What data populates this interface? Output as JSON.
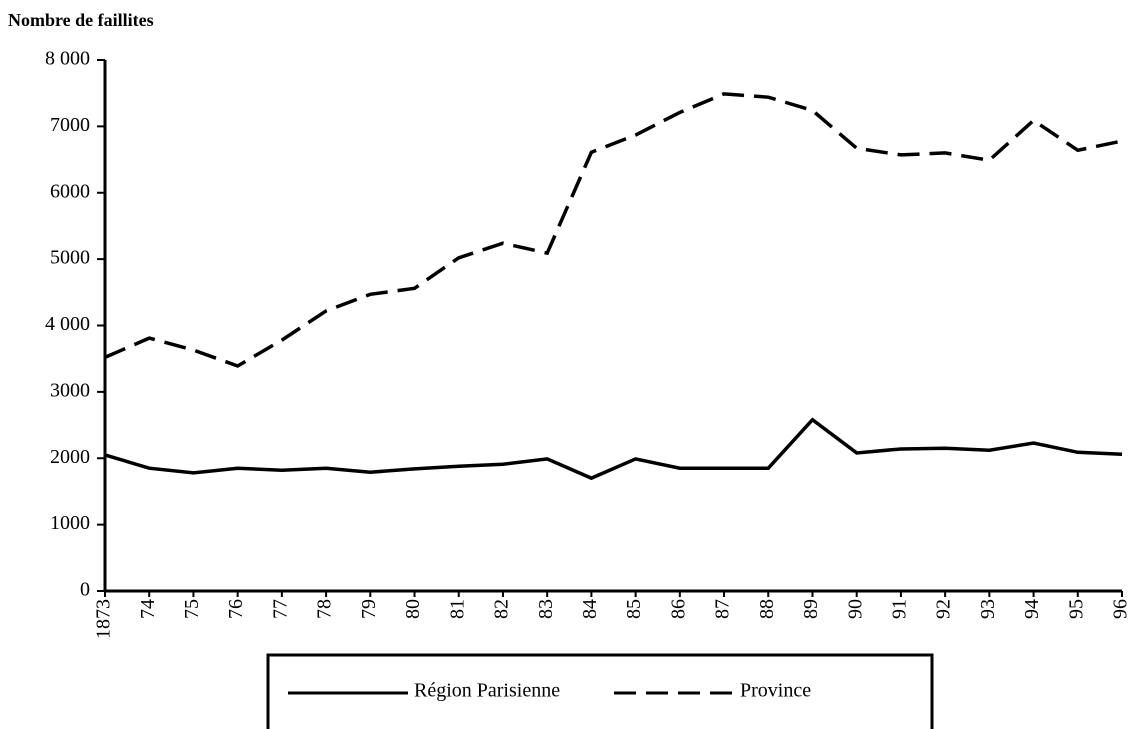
{
  "chart_data": {
    "type": "line",
    "y_label": "Nombre de faillites",
    "categories": [
      "1873",
      "74",
      "75",
      "76",
      "77",
      "78",
      "79",
      "80",
      "81",
      "82",
      "83",
      "84",
      "85",
      "86",
      "87",
      "88",
      "89",
      "90",
      "91",
      "92",
      "93",
      "94",
      "95",
      "96"
    ],
    "series": [
      {
        "name": "Région Parisienne",
        "color": "#000000",
        "line_style": "solid",
        "values": [
          2050,
          1850,
          1780,
          1850,
          1820,
          1850,
          1790,
          1840,
          1880,
          1910,
          1990,
          1700,
          1990,
          1850,
          1850,
          1850,
          2580,
          2080,
          2140,
          2150,
          2120,
          2230,
          2090,
          2060
        ]
      },
      {
        "name": "Province",
        "color": "#000000",
        "line_style": "dashed",
        "values": [
          3520,
          3810,
          3630,
          3390,
          3780,
          4220,
          4470,
          4560,
          5020,
          5240,
          5090,
          6610,
          6870,
          7210,
          7490,
          7440,
          7240,
          6670,
          6570,
          6600,
          6490,
          7090,
          6640,
          6780
        ]
      }
    ],
    "ylim": [
      0,
      8000
    ],
    "yticks": [
      0,
      1000,
      2000,
      3000,
      {
        "value": 4000,
        "label": "4 000"
      },
      5000,
      6000,
      7000,
      {
        "value": 8000,
        "label": "8 000"
      }
    ],
    "legend": "bottom"
  }
}
